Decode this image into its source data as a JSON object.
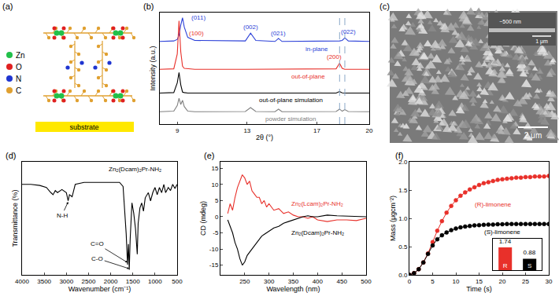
{
  "figures": {
    "a": {
      "label": "(a)",
      "legend": [
        {
          "name": "Zn",
          "color": "#22c04a"
        },
        {
          "name": "O",
          "color": "#e02020"
        },
        {
          "name": "N",
          "color": "#1f35d0"
        },
        {
          "name": "C",
          "color": "#e0a030"
        }
      ],
      "substrate": "substrate"
    },
    "c": {
      "label": "(c)",
      "scale_bar": "2 μm",
      "inset_scale_bar": "1 μm",
      "inset_annotation": "~500 nm"
    }
  },
  "chart_data": [
    {
      "type": "line",
      "title": "(b)",
      "x_label": "2θ (°)",
      "y_label": "Intensity (a.u.)",
      "x": [
        8,
        8.8,
        9.0,
        9.1,
        9.2,
        9.3,
        9.4,
        9.6,
        10,
        12.9,
        13.2,
        13.5,
        14.6,
        14.8,
        15.0,
        18.1,
        18.3,
        18.45,
        18.6,
        18.8,
        20
      ],
      "series": [
        {
          "name": "in-plane",
          "color": "#2a3fd8",
          "label_position": [
            17,
            65
          ],
          "values": [
            72,
            72.5,
            74,
            78,
            88,
            95,
            86,
            76,
            73,
            72.5,
            80,
            73,
            72,
            75,
            72,
            72,
            72.5,
            73,
            75.5,
            72.5,
            72
          ]
        },
        {
          "name": "out-of-plane",
          "color": "#e8302a",
          "label_position": [
            16.5,
            38
          ],
          "values": [
            45,
            45.5,
            60,
            92,
            62,
            48,
            46,
            45.5,
            45,
            45,
            45,
            45,
            45,
            45,
            45,
            45.5,
            51,
            46,
            45,
            45,
            45
          ]
        },
        {
          "name": "out-of-plane simulation",
          "color": "#000000",
          "label_position": [
            15.5,
            15
          ],
          "values": [
            22,
            22.5,
            32,
            42,
            30,
            23,
            22.5,
            22,
            22,
            22,
            22,
            22,
            22,
            22,
            22,
            22,
            23.5,
            22.2,
            22,
            22,
            22
          ]
        },
        {
          "name": "powder simulation",
          "color": "#808080",
          "label_position": [
            15.5,
            -3
          ],
          "values": [
            4,
            4.5,
            10,
            17,
            11,
            15,
            9,
            4.5,
            4,
            4.2,
            8,
            4.2,
            4,
            6.5,
            4,
            4.2,
            6.5,
            4.5,
            6,
            4.2,
            4
          ]
        }
      ],
      "annotations": [
        {
          "text": "(011)",
          "x": 10.2,
          "y": 95,
          "color": "#2a3fd8"
        },
        {
          "text": "(002)",
          "x": 13.2,
          "y": 86,
          "color": "#2a3fd8"
        },
        {
          "text": "(021)",
          "x": 14.8,
          "y": 80,
          "color": "#2a3fd8"
        },
        {
          "text": "(022)",
          "x": 18.8,
          "y": 81,
          "color": "#2a3fd8"
        },
        {
          "text": "(100)",
          "x": 10.1,
          "y": 80,
          "color": "#e8302a"
        },
        {
          "text": "(200)",
          "x": 18.0,
          "y": 57,
          "color": "#e8302a"
        }
      ],
      "vlines": [
        18.3,
        18.6
      ],
      "xlim": [
        8,
        20
      ],
      "xticks": [
        9,
        13,
        17,
        20
      ],
      "ylim": [
        -8,
        100
      ],
      "tick_labels": "x",
      "grid": false
    },
    {
      "type": "line",
      "title": "(d)",
      "x_label": "Wavenumber (cm⁻¹)",
      "y_label": "Transmittance (%)",
      "x": [
        4000,
        3800,
        3600,
        3450,
        3350,
        3300,
        3250,
        3200,
        3100,
        3000,
        2960,
        2930,
        2870,
        2800,
        2600,
        2400,
        2200,
        2000,
        1800,
        1720,
        1680,
        1650,
        1620,
        1600,
        1580,
        1560,
        1520,
        1480,
        1440,
        1400,
        1380,
        1340,
        1300,
        1260,
        1220,
        1150,
        1100,
        1050,
        1000,
        950,
        900,
        850,
        800,
        760,
        700,
        650,
        600,
        550,
        500
      ],
      "series": [
        {
          "name": "Zn₂(Dcam)₂Pr-NH₂",
          "color": "#000000",
          "label_position": [
            1450,
            103
          ],
          "values": [
            88,
            88,
            87,
            85,
            80,
            78,
            82,
            80,
            83,
            80,
            72,
            78,
            76,
            88,
            90,
            90,
            90,
            90,
            90,
            86,
            60,
            40,
            10,
            30,
            5,
            35,
            70,
            60,
            45,
            20,
            50,
            65,
            70,
            62,
            75,
            80,
            72,
            80,
            85,
            78,
            85,
            80,
            88,
            80,
            85,
            82,
            88,
            84,
            88
          ]
        }
      ],
      "annotations": [
        {
          "text": "N-H",
          "x": 3100,
          "y": 58,
          "arrow_to": [
            2960,
            71
          ]
        },
        {
          "text": "C=O",
          "x": 2300,
          "y": 30,
          "arrow_to": [
            1620,
            12
          ]
        },
        {
          "text": "C-O",
          "x": 2300,
          "y": 16,
          "arrow_to": [
            1580,
            6
          ]
        }
      ],
      "xlim": [
        4000,
        500
      ],
      "xticks": [
        4000,
        3500,
        3000,
        2500,
        2000,
        1500,
        1000,
        500
      ],
      "ylim": [
        0,
        110
      ],
      "tick_labels": "x",
      "grid": false
    },
    {
      "type": "line",
      "title": "(e)",
      "x_label": "Wavelength (nm)",
      "y_label": "CD (mdeg)",
      "x": [
        215,
        220,
        225,
        230,
        235,
        240,
        245,
        250,
        255,
        260,
        265,
        270,
        275,
        280,
        285,
        290,
        295,
        300,
        310,
        320,
        330,
        340,
        350,
        360,
        370,
        380,
        390,
        400,
        420,
        440,
        460,
        480,
        500
      ],
      "series": [
        {
          "name": "Zn₂(Lcam)₂Pr-NH₂",
          "color": "#e8302a",
          "label_position": [
            400,
            4
          ],
          "values": [
            1,
            4,
            2,
            6,
            9,
            11,
            13,
            12,
            10,
            11,
            8,
            7,
            6,
            6,
            4,
            5,
            3,
            4,
            2,
            2.5,
            1,
            1.5,
            0.5,
            0,
            0,
            -0.5,
            0,
            -1,
            -1.5,
            -1,
            -1,
            -1.2,
            -0.5
          ]
        },
        {
          "name": "Zn₂(Dcam)₂Pr-NH₂",
          "color": "#000000",
          "label_position": [
            400,
            -5
          ],
          "values": [
            -1,
            -3,
            -5,
            -8,
            -10,
            -13,
            -15,
            -14,
            -12,
            -11,
            -10,
            -9,
            -8,
            -7,
            -6,
            -5.5,
            -5,
            -4.5,
            -3.5,
            -3,
            -2,
            -1.5,
            -1,
            -0.5,
            0,
            0.3,
            0,
            0,
            0.5,
            0.3,
            0.2,
            0,
            0
          ]
        }
      ],
      "xlim": [
        200,
        500
      ],
      "xticks": [
        250,
        300,
        350,
        400,
        450,
        500
      ],
      "ylim": [
        -18,
        17
      ],
      "yticks": [
        -15,
        -10,
        -5,
        0,
        5,
        10,
        15
      ],
      "grid": false
    },
    {
      "type": "line",
      "title": "(f)",
      "x_label": "Time (s)",
      "y_label": "Mass (μgcm⁻²)",
      "x": [
        0,
        1,
        2,
        3,
        4,
        5,
        6,
        7,
        8,
        9,
        10,
        11,
        12,
        13,
        14,
        15,
        16,
        17,
        18,
        19,
        20,
        21,
        22,
        23,
        24,
        25,
        26,
        27,
        28,
        29,
        30
      ],
      "series": [
        {
          "name": "(R)-limonene",
          "color": "#e8302a",
          "marker": "circle",
          "line_style": "solid",
          "label_position": [
            18,
            1.25
          ],
          "values": [
            0,
            0.03,
            0.1,
            0.22,
            0.38,
            0.58,
            0.78,
            0.95,
            1.1,
            1.22,
            1.32,
            1.4,
            1.46,
            1.51,
            1.55,
            1.59,
            1.62,
            1.64,
            1.66,
            1.68,
            1.69,
            1.7,
            1.71,
            1.72,
            1.72,
            1.73,
            1.73,
            1.74,
            1.74,
            1.74,
            1.75
          ]
        },
        {
          "name": "(S)-limonene",
          "color": "#000000",
          "marker": "circle",
          "line_style": "solid",
          "label_position": [
            20,
            0.76
          ],
          "values": [
            0,
            0.03,
            0.1,
            0.22,
            0.37,
            0.52,
            0.63,
            0.7,
            0.75,
            0.79,
            0.82,
            0.84,
            0.855,
            0.865,
            0.875,
            0.88,
            0.885,
            0.89,
            0.89,
            0.895,
            0.895,
            0.9,
            0.9,
            0.9,
            0.9,
            0.9,
            0.9,
            0.9,
            0.9,
            0.9,
            0.9
          ]
        }
      ],
      "xlim": [
        0,
        30
      ],
      "xticks": [
        0,
        5,
        10,
        15,
        20,
        25,
        30
      ],
      "ylim": [
        0,
        2
      ],
      "yticks": [
        {
          "value": 0,
          "label": "0.0"
        },
        {
          "value": 0.5,
          "label": "0.5"
        },
        {
          "value": 1,
          "label": "1.0"
        },
        {
          "value": 1.5,
          "label": "1.5"
        },
        {
          "value": 2,
          "label": "2.0"
        }
      ],
      "grid": false,
      "inset": {
        "type": "bar",
        "categories": [
          "R",
          "S"
        ],
        "values": [
          1.74,
          0.88
        ],
        "colors": [
          "#e8302a",
          "#000000"
        ],
        "data_labels": true,
        "ylim": [
          0,
          2.4
        ],
        "tick_labels": "x"
      }
    }
  ]
}
